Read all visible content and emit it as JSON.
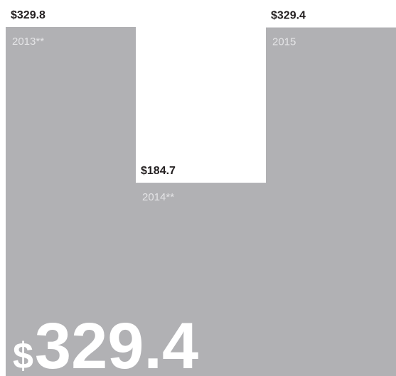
{
  "chart_data": {
    "type": "bar",
    "categories": [
      "2013**",
      "2014**",
      "2015"
    ],
    "values": [
      329.8,
      184.7,
      329.4
    ],
    "value_labels": [
      "$329.8",
      "$184.7",
      "$329.4"
    ],
    "color": "#b1b1b4",
    "headline": "$329.4"
  }
}
